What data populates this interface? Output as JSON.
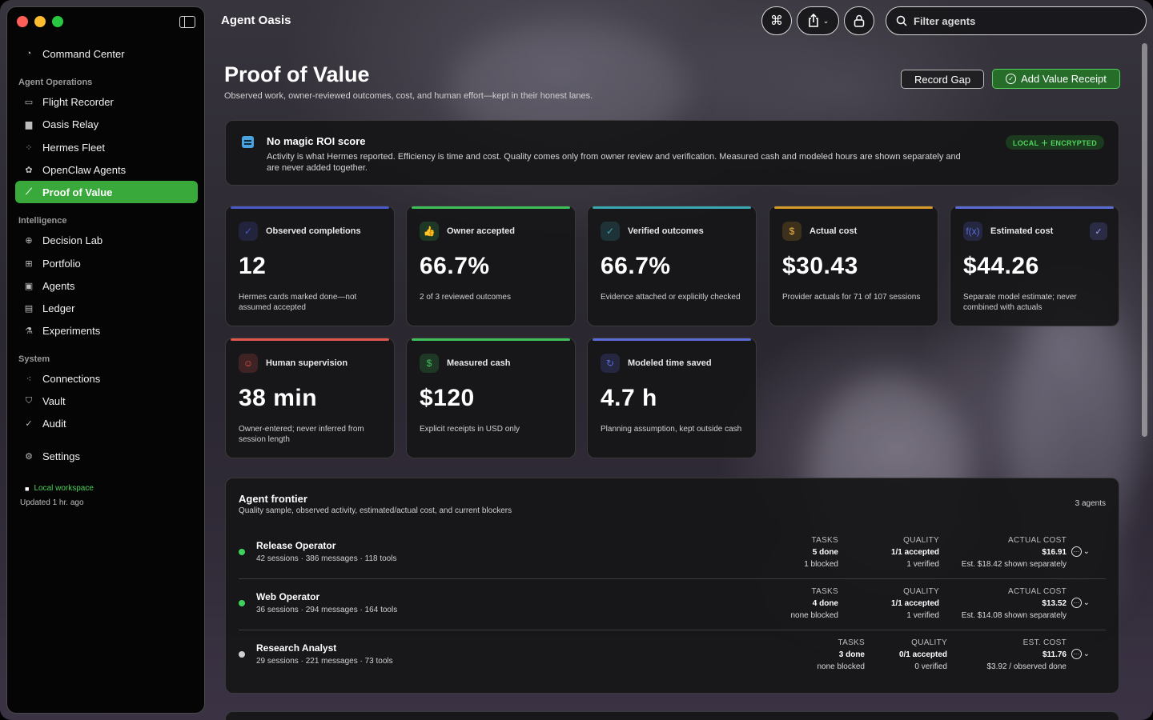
{
  "app": {
    "title": "Agent Oasis"
  },
  "toolbar": {
    "command_icon": "⌘",
    "share_icon": "share-icon",
    "lock_icon": "lock-icon",
    "filter_placeholder": "Filter agents"
  },
  "sidebar": {
    "top": {
      "label": "Command Center",
      "icon": "gauge-icon"
    },
    "sections": [
      {
        "label": "Agent Operations",
        "items": [
          {
            "label": "Flight Recorder",
            "icon": "waveform-icon"
          },
          {
            "label": "Oasis Relay",
            "icon": "chat-bubbles-icon"
          },
          {
            "label": "Hermes Fleet",
            "icon": "network-icon"
          },
          {
            "label": "OpenClaw Agents",
            "icon": "paw-icon"
          },
          {
            "label": "Proof of Value",
            "icon": "chart-line-icon",
            "active": true
          }
        ]
      },
      {
        "label": "Intelligence",
        "items": [
          {
            "label": "Decision Lab",
            "icon": "crosshair-icon"
          },
          {
            "label": "Portfolio",
            "icon": "grid-icon"
          },
          {
            "label": "Agents",
            "icon": "cpu-icon"
          },
          {
            "label": "Ledger",
            "icon": "ledger-icon"
          },
          {
            "label": "Experiments",
            "icon": "flask-icon"
          }
        ]
      },
      {
        "label": "System",
        "items": [
          {
            "label": "Connections",
            "icon": "nodes-icon"
          },
          {
            "label": "Vault",
            "icon": "shield-icon"
          },
          {
            "label": "Audit",
            "icon": "check-badge-icon"
          }
        ]
      }
    ],
    "settings": {
      "label": "Settings",
      "icon": "gear-icon"
    },
    "workspace": "Local workspace",
    "updated": "Updated 1 hr. ago"
  },
  "header": {
    "title": "Proof of Value",
    "subtitle": "Observed work, owner-reviewed outcomes, cost, and human effort—kept in their honest lanes.",
    "record_gap": "Record Gap",
    "add_receipt": "Add Value Receipt"
  },
  "notice": {
    "title": "No magic ROI score",
    "body": "Activity is what Hermes reported. Efficiency is time and cost. Quality comes only from owner review and verification. Measured cash and modeled hours are shown separately and are never added together.",
    "badge": "LOCAL ＋ ENCRYPTED"
  },
  "colors": {
    "accent_green": "#3aa93c",
    "blue": "#5b6bd6",
    "green": "#3fbf5a",
    "teal": "#3aa6b0",
    "amber": "#d69a2a",
    "red": "#e0564e"
  },
  "metrics": [
    {
      "label": "Observed completions",
      "value": "12",
      "desc": "Hermes cards marked done—not assumed accepted",
      "icon": "check-circle-icon",
      "glyph": "✓",
      "accent": "#4b58c8"
    },
    {
      "label": "Owner accepted",
      "value": "66.7%",
      "desc": "2 of 3 reviewed outcomes",
      "icon": "thumbs-up-icon",
      "glyph": "👍",
      "accent": "#3fbf5a"
    },
    {
      "label": "Verified outcomes",
      "value": "66.7%",
      "desc": "Evidence attached or explicitly checked",
      "icon": "verified-badge-icon",
      "glyph": "✓",
      "accent": "#3aa6b0"
    },
    {
      "label": "Actual cost",
      "value": "$30.43",
      "desc": "Provider actuals for 71 of 107 sessions",
      "icon": "coin-icon",
      "glyph": "$",
      "accent": "#d69a2a"
    },
    {
      "label": "Estimated cost",
      "value": "$44.26",
      "desc": "Separate model estimate; never combined with actuals",
      "icon": "function-icon",
      "glyph": "f(x)",
      "accent": "#5b6bd6"
    },
    {
      "label": "Human supervision",
      "value": "38 min",
      "desc": "Owner-entered; never inferred from session length",
      "icon": "people-icon",
      "glyph": "☺",
      "accent": "#e0564e"
    },
    {
      "label": "Measured cash",
      "value": "$120",
      "desc": "Explicit receipts in USD only",
      "icon": "banknote-icon",
      "glyph": "$",
      "accent": "#3fbf5a"
    },
    {
      "label": "Modeled time saved",
      "value": "4.7 h",
      "desc": "Planning assumption, kept outside cash",
      "icon": "clock-arrow-icon",
      "glyph": "↻",
      "accent": "#5b6bd6"
    }
  ],
  "frontier": {
    "title": "Agent frontier",
    "subtitle": "Quality sample, observed activity, estimated/actual cost, and current blockers",
    "count": "3 agents",
    "rows": [
      {
        "name": "Release Operator",
        "meta": "42 sessions · 386 messages · 118 tools",
        "status": "#3fd15a",
        "tasks_h": "TASKS",
        "tasks_v": "5 done",
        "tasks_s": "1 blocked",
        "quality_h": "QUALITY",
        "quality_v": "1/1 accepted",
        "quality_s": "1 verified",
        "cost_h": "ACTUAL COST",
        "cost_v": "$16.91",
        "cost_s": "Est. $18.42 shown separately"
      },
      {
        "name": "Web Operator",
        "meta": "36 sessions · 294 messages · 164 tools",
        "status": "#3fd15a",
        "tasks_h": "TASKS",
        "tasks_v": "4 done",
        "tasks_s": "none blocked",
        "quality_h": "QUALITY",
        "quality_v": "1/1 accepted",
        "quality_s": "1 verified",
        "cost_h": "ACTUAL COST",
        "cost_v": "$13.52",
        "cost_s": "Est. $14.08 shown separately"
      },
      {
        "name": "Research Analyst",
        "meta": "29 sessions · 221 messages · 73 tools",
        "status": "#cfcfcf",
        "tasks_h": "TASKS",
        "tasks_v": "3 done",
        "tasks_s": "none blocked",
        "quality_h": "QUALITY",
        "quality_v": "0/1 accepted",
        "quality_s": "0 verified",
        "cost_h": "EST. COST",
        "cost_v": "$11.76",
        "cost_s": "$3.92 / observed done"
      }
    ]
  }
}
